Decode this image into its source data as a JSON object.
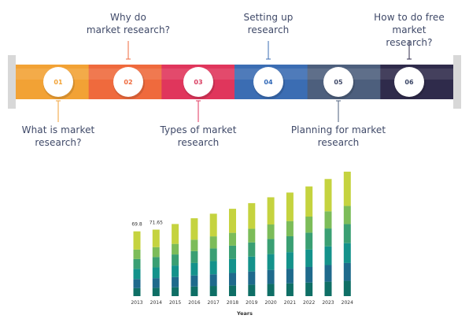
{
  "steps": [
    {
      "number": "01",
      "label": "What is market\nresearch?",
      "color": "#f2a235",
      "text_color": "#f2a235",
      "position": "bottom"
    },
    {
      "number": "02",
      "label": "Why  do\nmarket research?",
      "color": "#ef6a3d",
      "text_color": "#ef6a3d",
      "position": "top"
    },
    {
      "number": "03",
      "label": "Types of market\nresearch",
      "color": "#e0365c",
      "text_color": "#d93c60",
      "position": "bottom"
    },
    {
      "number": "04",
      "label": "Setting up\nresearch",
      "color": "#3b6db3",
      "text_color": "#2f67b7",
      "position": "top"
    },
    {
      "number": "05",
      "label": "Planning for market\nresearch",
      "color": "#4d5f7d",
      "text_color": "#3f4968",
      "position": "bottom"
    },
    {
      "number": "06",
      "label": "How to do free market\nresearch?",
      "color": "#2f2b4b",
      "text_color": "#3b4666",
      "position": "top"
    }
  ],
  "chart_data": {
    "type": "bar",
    "stacked": true,
    "categories": [
      "2013",
      "2014",
      "2015",
      "2016",
      "2017",
      "2018",
      "2019",
      "2020",
      "2021",
      "2022",
      "2023",
      "2024"
    ],
    "series": [
      {
        "values": [
          8.6,
          9.0,
          9.6,
          10.4,
          11.0,
          11.6,
          12.4,
          13.2,
          13.8,
          14.6,
          15.6,
          16.6
        ]
      },
      {
        "values": [
          9.8,
          10.4,
          11.0,
          11.9,
          12.6,
          13.4,
          14.2,
          15.1,
          15.8,
          16.8,
          17.9,
          19.1
        ]
      },
      {
        "values": [
          11.0,
          11.6,
          12.4,
          13.4,
          14.2,
          15.0,
          16.0,
          17.0,
          17.8,
          18.9,
          20.1,
          21.4
        ]
      },
      {
        "values": [
          10.6,
          11.1,
          11.9,
          12.8,
          13.6,
          14.4,
          15.3,
          16.3,
          17.1,
          18.1,
          19.3,
          20.5
        ]
      },
      {
        "values": [
          10.2,
          10.7,
          11.4,
          12.3,
          13.0,
          13.8,
          14.7,
          15.6,
          16.4,
          17.3,
          18.5,
          19.6
        ]
      },
      {
        "values": [
          19.6,
          18.85,
          21.4,
          23.1,
          24.4,
          25.9,
          27.6,
          29.3,
          30.7,
          32.5,
          34.8,
          36.9
        ]
      }
    ],
    "totals": [
      69.8,
      71.65,
      77.7,
      83.9,
      88.8,
      94.1,
      100.2,
      106.5,
      111.6,
      118.2,
      126.2,
      134.1
    ],
    "value_labels": [
      "69.8",
      "71.65"
    ],
    "colors": [
      "#0f6f66",
      "#1f6a8c",
      "#14928b",
      "#3a9f73",
      "#7cbc59",
      "#c5d33f"
    ],
    "xlabel": "Years",
    "ylabel": "",
    "ylim": [
      0,
      140
    ],
    "grid": false,
    "legend": "none"
  }
}
